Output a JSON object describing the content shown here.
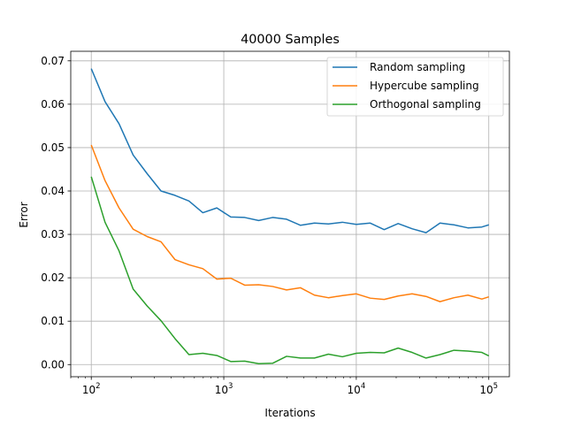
{
  "chart_data": {
    "type": "line",
    "title": "40000 Samples",
    "xlabel": "Iterations",
    "ylabel": "Error",
    "xscale": "log",
    "xlim": [
      70,
      143000
    ],
    "ylim": [
      -0.0028,
      0.0722
    ],
    "grid": true,
    "legend_position": "top-right",
    "x_ticks": [
      {
        "value": 100,
        "base": "10",
        "exp": "2"
      },
      {
        "value": 1000,
        "base": "10",
        "exp": "3"
      },
      {
        "value": 10000,
        "base": "10",
        "exp": "4"
      },
      {
        "value": 100000,
        "base": "10",
        "exp": "5"
      }
    ],
    "y_ticks": [
      {
        "value": 0.0,
        "label": "0.00"
      },
      {
        "value": 0.01,
        "label": "0.01"
      },
      {
        "value": 0.02,
        "label": "0.02"
      },
      {
        "value": 0.03,
        "label": "0.03"
      },
      {
        "value": 0.04,
        "label": "0.04"
      },
      {
        "value": 0.05,
        "label": "0.05"
      },
      {
        "value": 0.06,
        "label": "0.06"
      },
      {
        "value": 0.07,
        "label": "0.07"
      }
    ],
    "x": [
      100,
      127,
      162,
      207,
      264,
      336,
      428,
      546,
      695,
      886,
      1129,
      1438,
      1833,
      2336,
      2976,
      3793,
      4833,
      6158,
      7848,
      10000,
      12743,
      16238,
      20691,
      26367,
      33598,
      42813,
      54556,
      69519,
      88587,
      100000
    ],
    "series": [
      {
        "name": "Random sampling",
        "color": "#1f77b4",
        "values": [
          0.0682,
          0.0606,
          0.0555,
          0.0483,
          0.044,
          0.04,
          0.039,
          0.0377,
          0.035,
          0.0361,
          0.034,
          0.0339,
          0.0332,
          0.0339,
          0.0335,
          0.0321,
          0.0326,
          0.0324,
          0.0328,
          0.0323,
          0.0326,
          0.0311,
          0.0325,
          0.0313,
          0.0304,
          0.0326,
          0.0322,
          0.0315,
          0.0317,
          0.0322
        ]
      },
      {
        "name": "Hypercube sampling",
        "color": "#ff7f0e",
        "values": [
          0.0506,
          0.0424,
          0.0361,
          0.0312,
          0.0295,
          0.0283,
          0.0242,
          0.023,
          0.0221,
          0.0197,
          0.0199,
          0.0183,
          0.0184,
          0.018,
          0.0172,
          0.0177,
          0.016,
          0.0154,
          0.0159,
          0.0163,
          0.0153,
          0.015,
          0.0158,
          0.0163,
          0.0157,
          0.0145,
          0.0154,
          0.016,
          0.0151,
          0.0156
        ]
      },
      {
        "name": "Orthogonal sampling",
        "color": "#2ca02c",
        "values": [
          0.0433,
          0.0328,
          0.0262,
          0.0174,
          0.0135,
          0.0101,
          0.006,
          0.0023,
          0.0026,
          0.0021,
          0.0007,
          0.0008,
          0.0002,
          0.0003,
          0.0019,
          0.0015,
          0.0015,
          0.0024,
          0.0018,
          0.0026,
          0.0028,
          0.0027,
          0.0038,
          0.0028,
          0.0015,
          0.0023,
          0.0033,
          0.0031,
          0.0028,
          0.002
        ]
      }
    ]
  }
}
